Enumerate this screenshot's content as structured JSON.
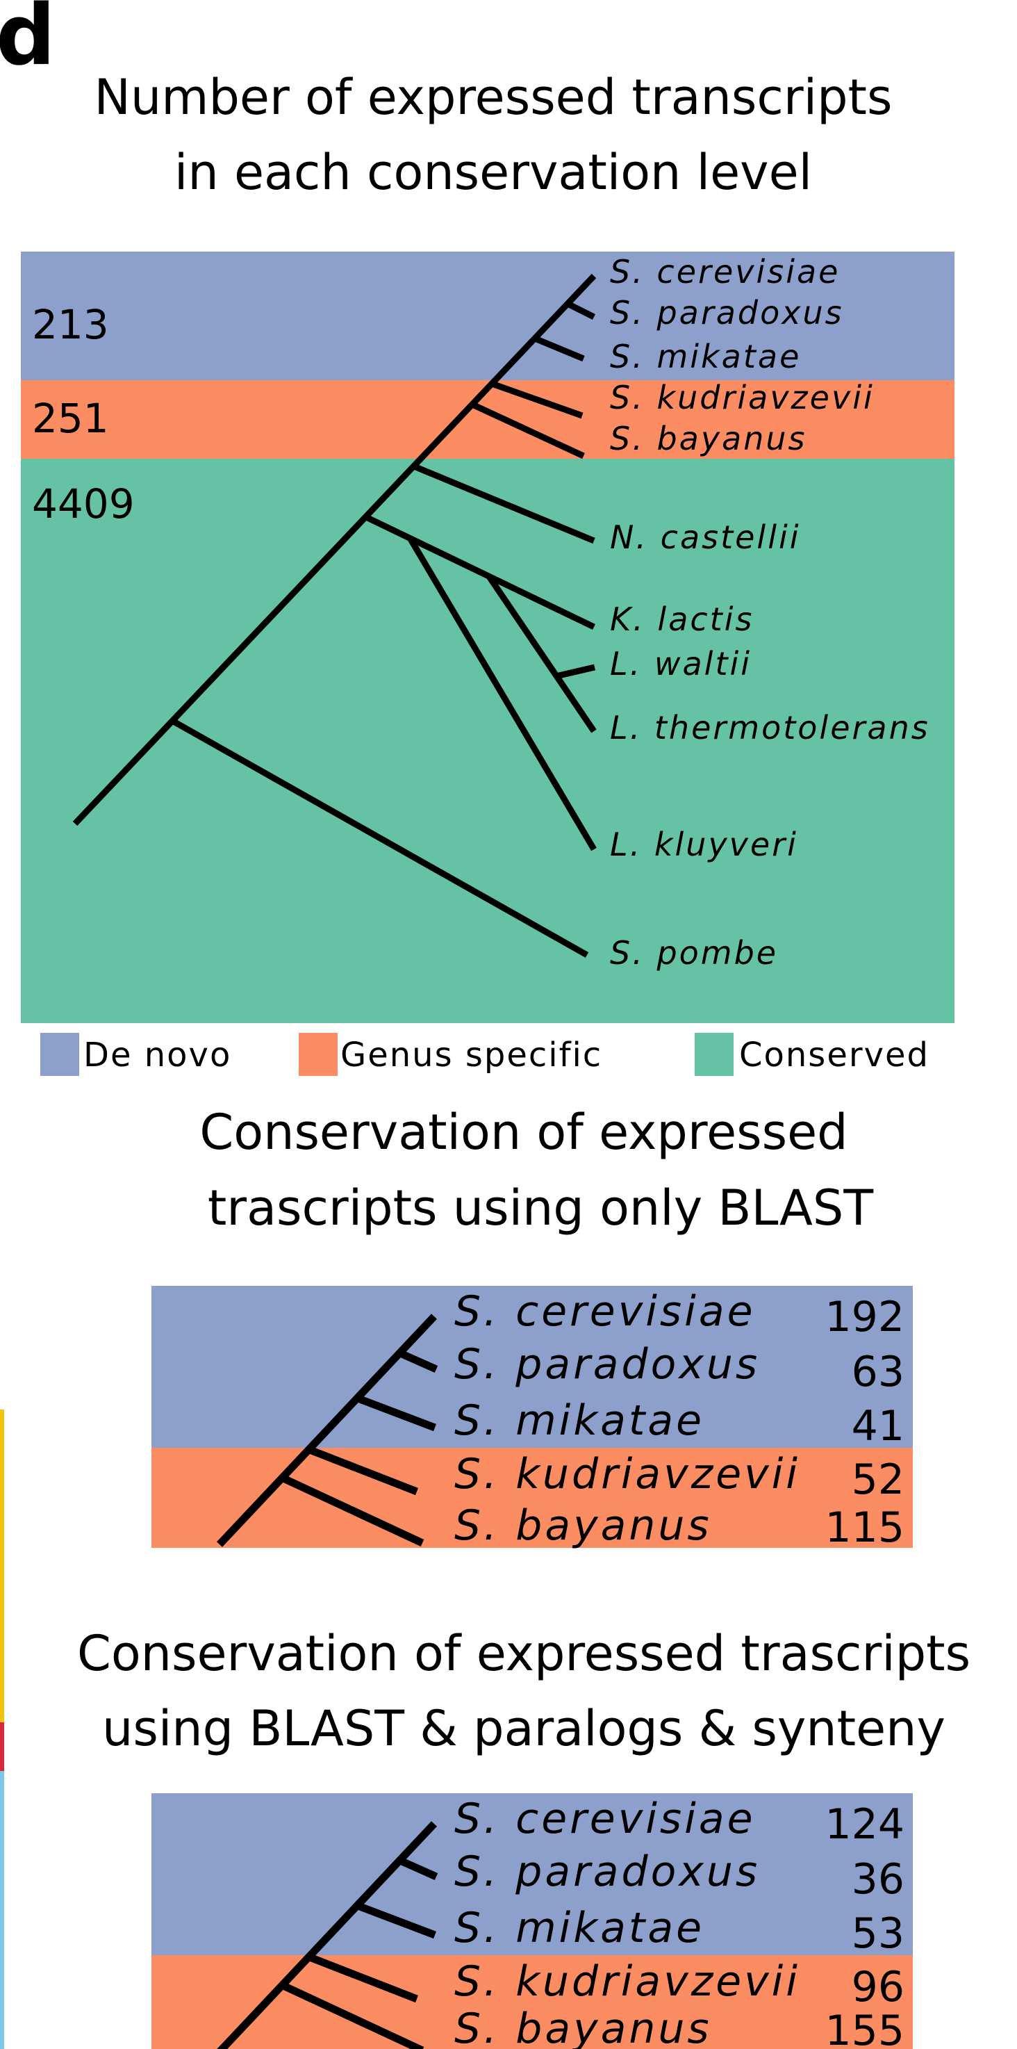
{
  "panel_label": "d",
  "colors": {
    "de_novo": "#8da0cb",
    "genus_specific": "#fc8d62",
    "conserved": "#66c2a5"
  },
  "panel1": {
    "title_line1": "Number of expressed transcripts",
    "title_line2": "in each conservation level",
    "counts": {
      "de_novo": "213",
      "genus_specific": "251",
      "conserved": "4409"
    },
    "species": [
      "S. cerevisiae",
      "S. paradoxus",
      "S. mikatae",
      "S. kudriavzevii",
      "S. bayanus",
      "N. castellii",
      "K. lactis",
      "L. waltii",
      "L. thermotolerans",
      "L. kluyveri",
      "S. pombe"
    ]
  },
  "legend": {
    "de_novo": "De novo",
    "genus_specific": "Genus specific",
    "conserved": "Conserved"
  },
  "panel2": {
    "title_line1": "Conservation of expressed",
    "title_line2": "trascripts using only BLAST",
    "species": [
      "S. cerevisiae",
      "S. paradoxus",
      "S. mikatae",
      "S. kudriavzevii",
      "S. bayanus"
    ],
    "values": [
      "192",
      "63",
      "41",
      "52",
      "115"
    ]
  },
  "panel3": {
    "title_line1": "Conservation of expressed trascripts",
    "title_line2": "using BLAST & paralogs & synteny",
    "species": [
      "S. cerevisiae",
      "S. paradoxus",
      "S. mikatae",
      "S. kudriavzevii",
      "S. bayanus"
    ],
    "values": [
      "124",
      "36",
      "53",
      "96",
      "155"
    ]
  }
}
